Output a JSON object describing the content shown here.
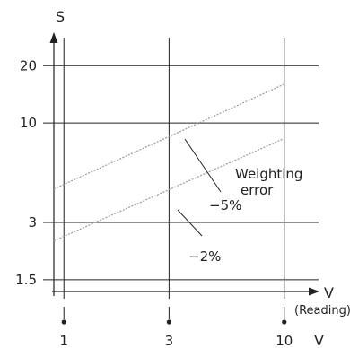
{
  "chart_data": {
    "type": "line",
    "xlabel": "V",
    "xlabel_sub": "(Reading)",
    "ylabel": "S",
    "bottom_axis_label": "V",
    "x_scale": "log",
    "y_scale": "log",
    "xlim": [
      0.9,
      15
    ],
    "ylim": [
      1.3,
      32
    ],
    "x_ticks": [
      {
        "value": 1,
        "label": "1"
      },
      {
        "value": 3,
        "label": "3"
      },
      {
        "value": 10,
        "label": "10"
      }
    ],
    "y_ticks": [
      {
        "value": 1.5,
        "label": "1.5"
      },
      {
        "value": 3,
        "label": "3"
      },
      {
        "value": 10,
        "label": "10"
      },
      {
        "value": 20,
        "label": "20"
      }
    ],
    "grid": true,
    "series": [
      {
        "name": "−5%",
        "x": [
          0.9,
          10
        ],
        "y": [
          4.5,
          16
        ]
      },
      {
        "name": "−2%",
        "x": [
          0.9,
          10
        ],
        "y": [
          2.4,
          8.3
        ]
      }
    ],
    "annotations": {
      "weighting_line1": "Weighting",
      "weighting_line2": "error"
    },
    "colors": {
      "grid": "#222222",
      "series": "#9a9a9a"
    }
  }
}
